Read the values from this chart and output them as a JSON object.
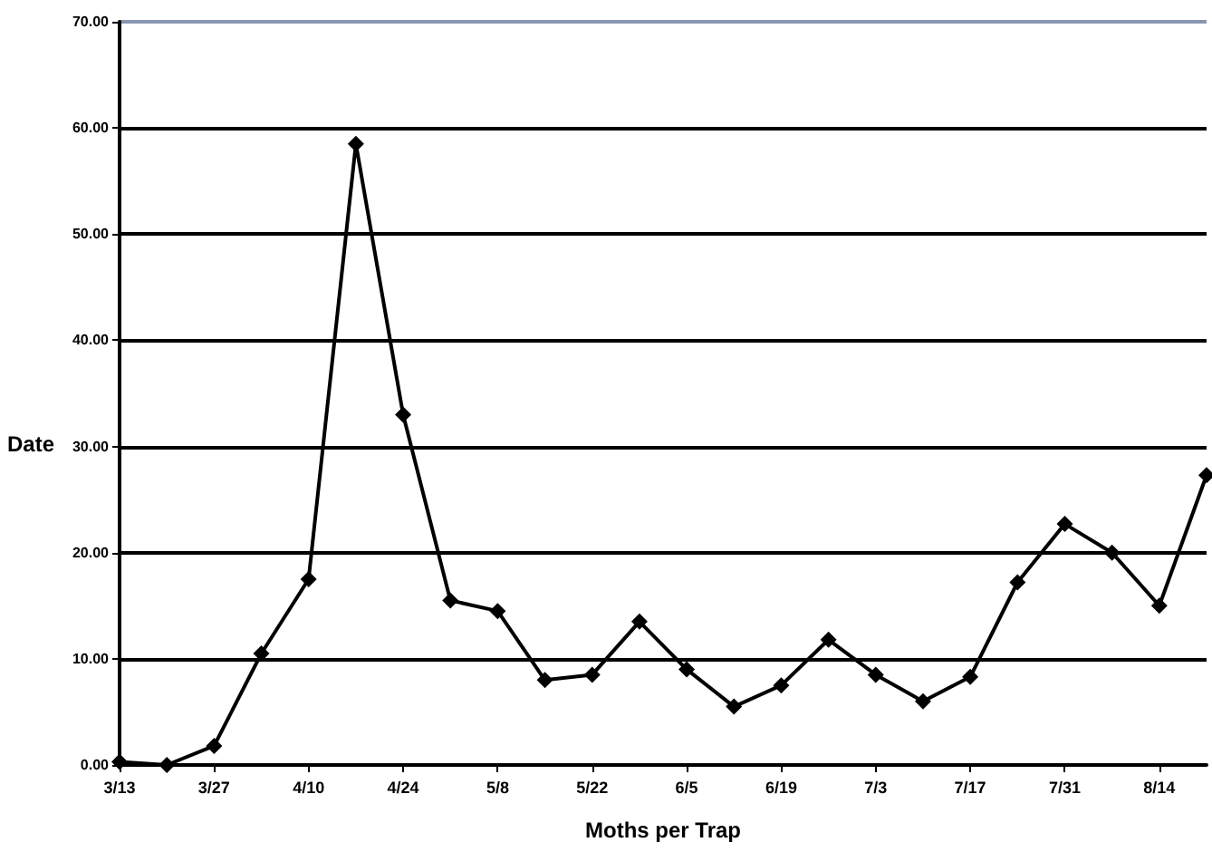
{
  "chart_data": {
    "type": "line",
    "xlabel": "Moths per Trap",
    "ylabel": "Date",
    "categories": [
      "3/13",
      null,
      "3/27",
      null,
      "4/10",
      null,
      "4/24",
      null,
      "5/8",
      null,
      "5/22",
      null,
      "6/5",
      null,
      "6/19",
      null,
      "7/3",
      null,
      "7/17",
      null,
      "7/31",
      null,
      "8/14",
      null
    ],
    "series": [
      {
        "color": "#000000",
        "values": [
          0.3,
          0,
          1.8,
          10.5,
          17.5,
          58.5,
          33,
          15.5,
          14.5,
          8,
          8.5,
          13.5,
          9,
          5.5,
          7.5,
          11.8,
          8.5,
          6,
          8.3,
          17.2,
          22.7,
          20,
          15,
          27.3
        ]
      }
    ],
    "ylim": [
      0,
      70
    ],
    "yticks": [
      {
        "value": 0,
        "label": "0.00"
      },
      {
        "value": 10,
        "label": "10.00"
      },
      {
        "value": 20,
        "label": "20.00"
      },
      {
        "value": 30,
        "label": "30.00"
      },
      {
        "value": 40,
        "label": "40.00"
      },
      {
        "value": 50,
        "label": "50.00"
      },
      {
        "value": 60,
        "label": "60.00"
      },
      {
        "value": 70,
        "label": "70.00"
      }
    ],
    "grid": "y",
    "marker": "diamond",
    "line_style": "solid"
  }
}
